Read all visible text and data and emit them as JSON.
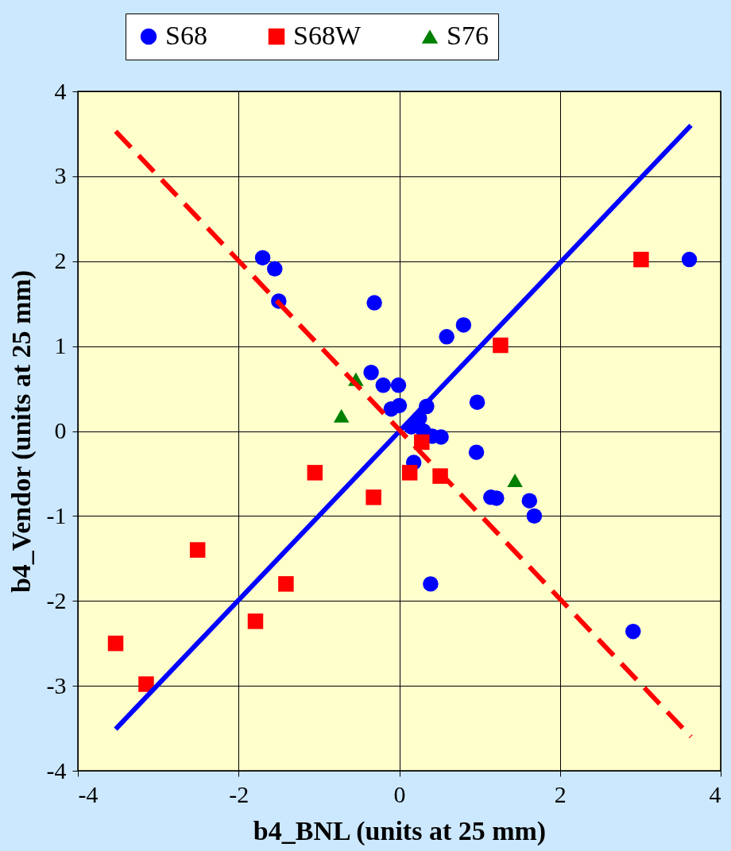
{
  "chart_data": {
    "type": "scatter",
    "xlabel": "b4_BNL (units at 25 mm)",
    "ylabel": "b4_Vendor (units at 25 mm)",
    "xlim": [
      -4,
      4
    ],
    "ylim": [
      -4,
      4
    ],
    "xticks": [
      -4,
      -2,
      0,
      2,
      4
    ],
    "yticks": [
      -4,
      -3,
      -2,
      -1,
      0,
      1,
      2,
      3,
      4
    ],
    "grid": true,
    "legend": "top",
    "series": [
      {
        "name": "S68",
        "color": "#0000ff",
        "marker": "circle",
        "x": [
          -1.7,
          -1.55,
          -1.5,
          -0.31,
          0.59,
          0.8,
          -0.35,
          -0.2,
          -0.01,
          -0.1,
          0.0,
          0.34,
          0.97,
          0.15,
          0.25,
          0.3,
          0.41,
          0.52,
          0.18,
          0.96,
          1.14,
          1.21,
          1.62,
          1.68,
          0.39,
          3.61,
          2.91
        ],
        "values": [
          2.04,
          1.91,
          1.53,
          1.51,
          1.11,
          1.25,
          0.69,
          0.54,
          0.54,
          0.26,
          0.3,
          0.29,
          0.34,
          0.05,
          0.15,
          0.0,
          -0.06,
          -0.07,
          -0.37,
          -0.25,
          -0.78,
          -0.79,
          -0.82,
          -1.0,
          -1.8,
          2.02,
          -2.36
        ]
      },
      {
        "name": "S68W",
        "color": "#ff0000",
        "marker": "square",
        "x": [
          -3.15,
          -3.53,
          -2.51,
          -1.41,
          -1.79,
          -1.05,
          -0.32,
          0.13,
          0.28,
          0.51,
          1.26,
          3.01
        ],
        "values": [
          -2.98,
          -2.5,
          -1.4,
          -1.8,
          -2.24,
          -0.49,
          -0.78,
          -0.49,
          -0.13,
          -0.53,
          1.01,
          2.02
        ]
      },
      {
        "name": "S76",
        "color": "#008000",
        "marker": "triangle",
        "x": [
          -0.54,
          -0.72,
          1.44
        ],
        "values": [
          0.61,
          0.18,
          -0.58
        ]
      },
      {
        "type": "line",
        "color": "#0000ff",
        "line_style": "solid",
        "x": [
          -3.53,
          3.63
        ],
        "values": [
          -3.51,
          3.6
        ]
      },
      {
        "type": "line",
        "color": "#ff0000",
        "line_style": "dashed",
        "x": [
          -3.53,
          3.63
        ],
        "values": [
          3.53,
          -3.6
        ]
      }
    ]
  }
}
